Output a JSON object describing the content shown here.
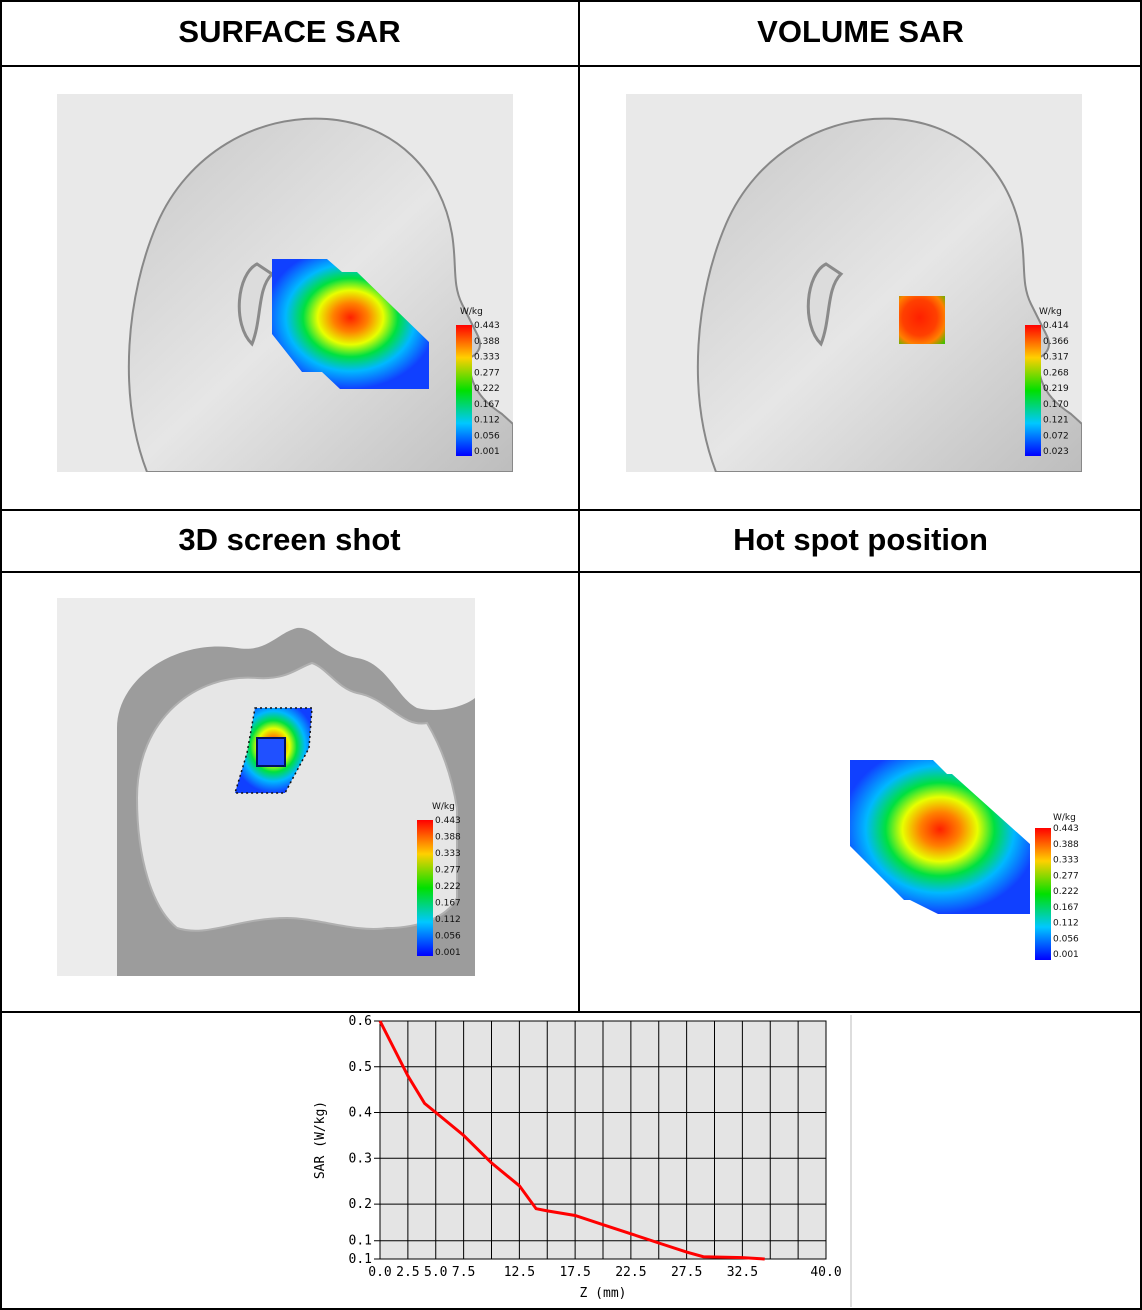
{
  "table": {
    "row1": {
      "left_title": "SURFACE SAR",
      "right_title": "VOLUME SAR"
    },
    "row2": {
      "left_title": "3D screen shot",
      "right_title": "Hot spot position"
    }
  },
  "legends": {
    "surface": {
      "unit": "W/kg",
      "ticks": [
        "0.443",
        "0.388",
        "0.333",
        "0.277",
        "0.222",
        "0.167",
        "0.112",
        "0.056",
        "0.001"
      ]
    },
    "volume": {
      "unit": "W/kg",
      "ticks": [
        "0.414",
        "0.366",
        "0.317",
        "0.268",
        "0.219",
        "0.170",
        "0.121",
        "0.072",
        "0.023"
      ]
    },
    "screenshot3d": {
      "unit": "W/kg",
      "ticks": [
        "0.443",
        "0.388",
        "0.333",
        "0.277",
        "0.222",
        "0.167",
        "0.112",
        "0.056",
        "0.001"
      ]
    },
    "hotspot": {
      "unit": "W/kg",
      "ticks": [
        "0.443",
        "0.388",
        "0.333",
        "0.277",
        "0.222",
        "0.167",
        "0.112",
        "0.056",
        "0.001"
      ]
    }
  },
  "colors": {
    "scale_top": "#ff0000",
    "scale_mid": "#00e000",
    "scale_bottom": "#0000ff",
    "plot_line": "#ff0000",
    "plot_bg": "#e4e4e4"
  },
  "chart_data": {
    "type": "line",
    "xlabel": "Z (mm)",
    "ylabel": "SAR (W/kg)",
    "xlim": [
      0,
      40
    ],
    "ylim": [
      0.08,
      0.6
    ],
    "x_tick_labels": [
      "0.0",
      "2.5",
      "5.0",
      "7.5",
      "12.5",
      "17.5",
      "22.5",
      "27.5",
      "32.5",
      "40.0"
    ],
    "y_tick_labels": [
      "0.6",
      "0.5",
      "0.4",
      "0.3",
      "0.2",
      "0.1",
      "0.1"
    ],
    "y_tick_values": [
      0.6,
      0.5,
      0.4,
      0.3,
      0.2,
      0.12,
      0.08
    ],
    "grid": true,
    "series": [
      {
        "x": [
          0,
          2.5,
          4.0,
          5.0,
          7.5,
          10.0,
          12.5,
          14.0,
          15.0,
          17.5,
          20.0,
          22.5,
          25.0,
          27.5,
          29.0,
          32.5,
          34.5
        ],
        "y": [
          0.6,
          0.48,
          0.42,
          0.4,
          0.35,
          0.29,
          0.24,
          0.19,
          0.185,
          0.175,
          0.155,
          0.135,
          0.115,
          0.095,
          0.085,
          0.083,
          0.08
        ]
      }
    ]
  }
}
